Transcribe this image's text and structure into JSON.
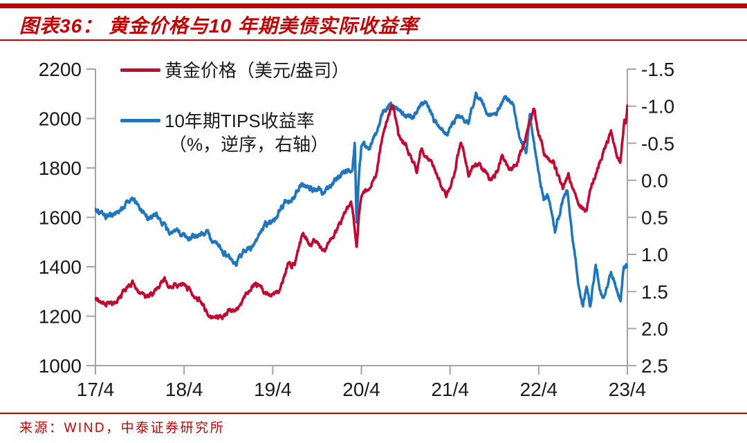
{
  "header": {
    "title": "图表36： 黄金价格与10 年期美债实际收益率"
  },
  "footer": {
    "source": "来源：WIND，中泰证券研究所"
  },
  "legend": {
    "gold": {
      "label": "黄金价格（美元/盎司）",
      "color": "#C00A32"
    },
    "tips": {
      "label": "10年期TIPS收益率",
      "sublabel": "（%，逆序，右轴）",
      "color": "#2076BC"
    }
  },
  "colors": {
    "accent_red": "#C00000",
    "gold_line": "#C00A32",
    "tips_line": "#2076BC",
    "axis_line": "#A3A3A3",
    "tick_label": "#1a1a1a"
  },
  "chart_data": {
    "type": "line",
    "title": "黄金价格与10年期美债实际收益率",
    "x_unit": "months since 2017-04",
    "x_range_months": [
      0,
      72
    ],
    "x_tick_labels": [
      "17/4",
      "18/4",
      "19/4",
      "20/4",
      "21/4",
      "22/4",
      "23/4"
    ],
    "grid": false,
    "legend_position": "top-left",
    "left_axis": {
      "label": "黄金价格（美元/盎司）",
      "range": [
        1000,
        2200
      ],
      "ticks": [
        2200,
        2000,
        1800,
        1600,
        1400,
        1200,
        1000
      ]
    },
    "right_axis": {
      "label": "10年期TIPS收益率（%，逆序，右轴）",
      "range": [
        -1.5,
        2.5
      ],
      "inverted": true,
      "ticks": [
        -1.5,
        -1.0,
        -0.5,
        0.0,
        0.5,
        1.0,
        1.5,
        2.0,
        2.5
      ]
    },
    "series": [
      {
        "name": "黄金价格（美元/盎司）",
        "axis": "left",
        "color": "#C00A32",
        "points": [
          [
            0,
            1268
          ],
          [
            1,
            1245
          ],
          [
            2,
            1252
          ],
          [
            3,
            1262
          ],
          [
            4,
            1300
          ],
          [
            5,
            1332
          ],
          [
            6,
            1282
          ],
          [
            7,
            1278
          ],
          [
            8,
            1292
          ],
          [
            9,
            1342
          ],
          [
            10,
            1328
          ],
          [
            11,
            1322
          ],
          [
            12,
            1338
          ],
          [
            13,
            1298
          ],
          [
            14,
            1272
          ],
          [
            15,
            1222
          ],
          [
            16,
            1198
          ],
          [
            17,
            1192
          ],
          [
            18,
            1222
          ],
          [
            19,
            1220
          ],
          [
            20,
            1268
          ],
          [
            21,
            1318
          ],
          [
            22,
            1328
          ],
          [
            23,
            1296
          ],
          [
            24,
            1280
          ],
          [
            25,
            1298
          ],
          [
            26,
            1402
          ],
          [
            27,
            1418
          ],
          [
            28,
            1528
          ],
          [
            29,
            1492
          ],
          [
            30,
            1502
          ],
          [
            31,
            1462
          ],
          [
            32,
            1512
          ],
          [
            33,
            1572
          ],
          [
            34.6,
            1668
          ],
          [
            35,
            1585
          ],
          [
            35.35,
            1478
          ],
          [
            35.7,
            1612
          ],
          [
            36,
            1688
          ],
          [
            37,
            1722
          ],
          [
            38,
            1772
          ],
          [
            39,
            1958
          ],
          [
            40.3,
            2062
          ],
          [
            41,
            1932
          ],
          [
            42,
            1898
          ],
          [
            43.5,
            1782
          ],
          [
            44,
            1868
          ],
          [
            45,
            1852
          ],
          [
            46,
            1788
          ],
          [
            47.5,
            1688
          ],
          [
            48.5,
            1772
          ],
          [
            49.5,
            1902
          ],
          [
            50.5,
            1772
          ],
          [
            51,
            1808
          ],
          [
            52,
            1812
          ],
          [
            53.5,
            1752
          ],
          [
            54.5,
            1788
          ],
          [
            55,
            1848
          ],
          [
            56,
            1792
          ],
          [
            57,
            1818
          ],
          [
            58,
            1902
          ],
          [
            59.4,
            2044
          ],
          [
            60,
            1938
          ],
          [
            61,
            1848
          ],
          [
            62,
            1822
          ],
          [
            63.3,
            1712
          ],
          [
            64,
            1768
          ],
          [
            65.5,
            1652
          ],
          [
            66.5,
            1632
          ],
          [
            67,
            1712
          ],
          [
            68,
            1798
          ],
          [
            69.8,
            1945
          ],
          [
            70.5,
            1862
          ],
          [
            71.05,
            1815
          ],
          [
            71.6,
            1998
          ],
          [
            71.8,
            1972
          ],
          [
            72,
            2048
          ]
        ]
      },
      {
        "name": "10年期TIPS收益率",
        "axis": "right",
        "color": "#2076BC",
        "points": [
          [
            0,
            0.41
          ],
          [
            1,
            0.44
          ],
          [
            2,
            0.51
          ],
          [
            3,
            0.45
          ],
          [
            4,
            0.31
          ],
          [
            5,
            0.23
          ],
          [
            6,
            0.39
          ],
          [
            7,
            0.49
          ],
          [
            8,
            0.45
          ],
          [
            9,
            0.56
          ],
          [
            10,
            0.72
          ],
          [
            11,
            0.68
          ],
          [
            12,
            0.73
          ],
          [
            13,
            0.78
          ],
          [
            14,
            0.74
          ],
          [
            15,
            0.72
          ],
          [
            16,
            0.8
          ],
          [
            17,
            0.9
          ],
          [
            18,
            1.04
          ],
          [
            19,
            1.14
          ],
          [
            20,
            0.97
          ],
          [
            21,
            0.92
          ],
          [
            22,
            0.78
          ],
          [
            23,
            0.6
          ],
          [
            24,
            0.57
          ],
          [
            25,
            0.4
          ],
          [
            26,
            0.28
          ],
          [
            27,
            0.2
          ],
          [
            28,
            0.02
          ],
          [
            29,
            0.14
          ],
          [
            30,
            0.13
          ],
          [
            31,
            0.17
          ],
          [
            32,
            0.07
          ],
          [
            33,
            -0.03
          ],
          [
            34,
            -0.16
          ],
          [
            34.8,
            -0.12
          ],
          [
            35.1,
            -0.5
          ],
          [
            35.35,
            0.62
          ],
          [
            35.7,
            -0.12
          ],
          [
            36,
            -0.44
          ],
          [
            37,
            -0.46
          ],
          [
            38,
            -0.62
          ],
          [
            39,
            -0.94
          ],
          [
            40,
            -1.04
          ],
          [
            41,
            -0.96
          ],
          [
            42,
            -0.86
          ],
          [
            43,
            -0.84
          ],
          [
            44,
            -1.04
          ],
          [
            45,
            -1.02
          ],
          [
            46,
            -0.78
          ],
          [
            47.5,
            -0.62
          ],
          [
            48.5,
            -0.8
          ],
          [
            49.5,
            -0.88
          ],
          [
            50.5,
            -0.78
          ],
          [
            51.5,
            -1.16
          ],
          [
            52.5,
            -1.02
          ],
          [
            53.5,
            -0.85
          ],
          [
            54.5,
            -0.96
          ],
          [
            55.5,
            -1.12
          ],
          [
            56.5,
            -1.04
          ],
          [
            57.5,
            -0.55
          ],
          [
            58.3,
            -0.42
          ],
          [
            58.8,
            -0.92
          ],
          [
            59.5,
            -0.4
          ],
          [
            60,
            -0.08
          ],
          [
            60.7,
            0.3
          ],
          [
            61.3,
            0.18
          ],
          [
            62.2,
            0.7
          ],
          [
            63.1,
            0.33
          ],
          [
            63.9,
            0.12
          ],
          [
            64.6,
            0.8
          ],
          [
            65.3,
            1.32
          ],
          [
            66,
            1.7
          ],
          [
            66.5,
            1.42
          ],
          [
            67,
            1.7
          ],
          [
            67.7,
            1.15
          ],
          [
            68.4,
            1.5
          ],
          [
            69,
            1.55
          ],
          [
            69.8,
            1.18
          ],
          [
            70.5,
            1.48
          ],
          [
            71.1,
            1.63
          ],
          [
            71.5,
            1.13
          ],
          [
            72,
            1.18
          ]
        ]
      }
    ]
  }
}
